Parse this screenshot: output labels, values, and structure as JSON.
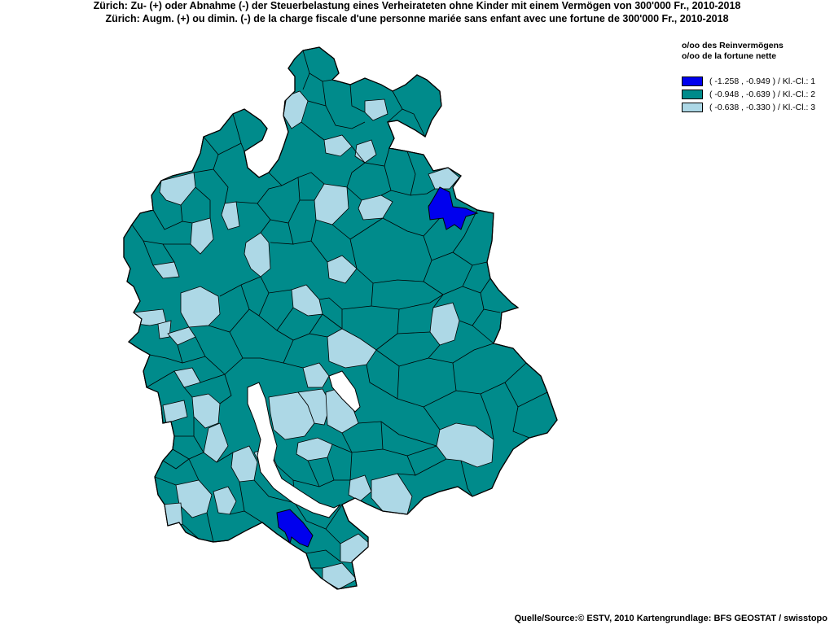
{
  "titles": {
    "de": "Zürich: Zu- (+) oder Abnahme (-) der Steuerbelastung  eines Verheirateten ohne Kinder mit einem Vermögen von 300'000 Fr., 2010-2018",
    "fr": "Zürich: Augm. (+) ou dimin. (-) de la charge fiscale d'une personne mariée sans enfant avec une fortune de 300'000 Fr., 2010-2018"
  },
  "legend": {
    "title_de": "o/oo des Reinvermögens",
    "title_fr": "o/oo de la fortune nette",
    "classes": [
      {
        "label": "( -1.258 , -0.949 ) / Kl.-Cl.: 1",
        "color": "#0000ee"
      },
      {
        "label": "( -0.948 , -0.639 ) / Kl.-Cl.: 2",
        "color": "#008b8b"
      },
      {
        "label": "( -0.638 , -0.330 ) / Kl.-Cl.: 3",
        "color": "#add8e6"
      }
    ]
  },
  "source": "Quelle/Source:© ESTV, 2010 Kartengrundlage: BFS GEOSTAT / swisstopo",
  "map": {
    "region": "Kanton Zürich",
    "lake_color": "#ffffff",
    "border_color": "#000000"
  }
}
